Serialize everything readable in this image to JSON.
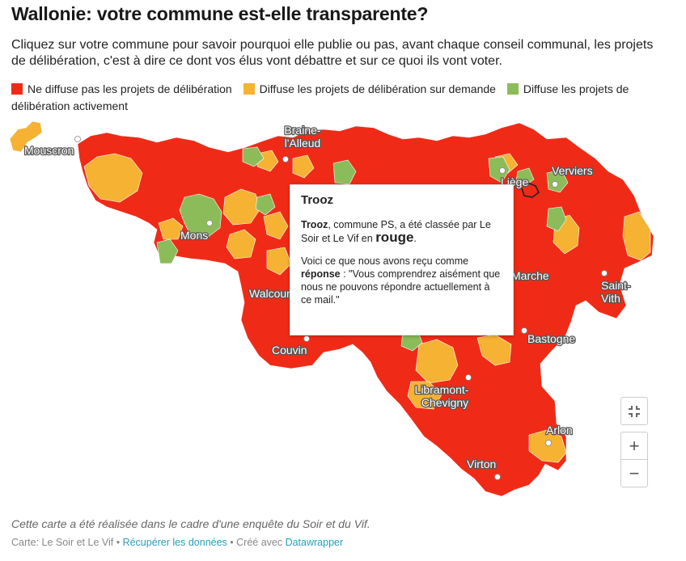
{
  "title": "Wallonie: votre commune est-elle transparente?",
  "description": "Cliquez sur votre commune pour savoir pourquoi elle publie ou pas, avant chaque conseil communal, les projets de délibération, c'est à dire ce dont vos élus vont débattre et sur ce quoi ils vont voter.",
  "legend": [
    {
      "label": "Ne diffuse pas les projets de délibération",
      "color": "#ef2b17"
    },
    {
      "label": "Diffuse les projets de délibération sur demande",
      "color": "#f5b233"
    },
    {
      "label": "Diffuse les projets de délibération activement",
      "color": "#8cbc5a"
    }
  ],
  "map": {
    "cities": [
      "Mouscron",
      "Braine-l'Alleud",
      "Liège",
      "Verviers",
      "Mons",
      "Walcourt",
      "Marche",
      "Saint-Vith",
      "Bastogne",
      "Couvin",
      "Libramont-Chevigny",
      "Arlon",
      "Virton"
    ]
  },
  "tooltip": {
    "title": "Trooz",
    "name": "Trooz",
    "line1_mid": ", commune PS, a été classée par Le Soir et Le Vif en ",
    "rating": "rouge",
    "line1_end": ".",
    "line2_start": "Voici ce que nous avons reçu comme ",
    "line2_bold": "réponse",
    "line2_end": " : \"Vous comprendrez aisément que nous ne pouvons répondre actuellement à ce mail.\""
  },
  "zoom": {
    "fullscreen_icon": "fullscreen-icon",
    "zoom_in": "+",
    "zoom_out": "−"
  },
  "note": "Cette carte a été réalisée dans le cadre d'une enquête du Soir et du Vif.",
  "footer": {
    "source_label": "Carte: Le Soir et Le Vif",
    "sep1": " • ",
    "get_data": "Récupérer les données",
    "sep2": " • Créé avec ",
    "made_with": "Datawrapper"
  }
}
